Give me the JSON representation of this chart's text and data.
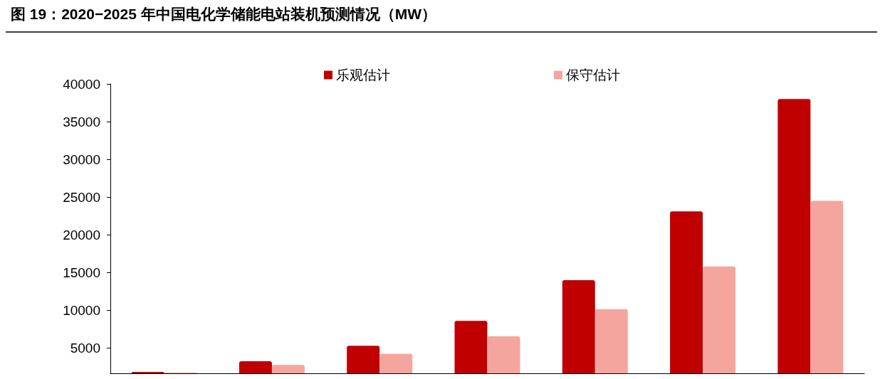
{
  "chart_data": {
    "type": "bar",
    "title": "图 19：2020−2025 年中国电化学储能电站装机预测情况（MW）",
    "categories": [
      null,
      null,
      null,
      null,
      null,
      null,
      null
    ],
    "series": [
      {
        "name": "乐观估计",
        "color": "#c00000",
        "values": [
          1850,
          3250,
          5300,
          8600,
          14000,
          23100,
          38000
        ]
      },
      {
        "name": "保守估计",
        "color": "#f4a69e",
        "values": [
          1750,
          2750,
          4250,
          6550,
          10150,
          15800,
          24500
        ]
      }
    ],
    "ylim": [
      1650,
      40000
    ],
    "yticks": [
      5000,
      10000,
      15000,
      20000,
      25000,
      30000,
      35000,
      40000
    ],
    "grid": false,
    "legend": "top"
  }
}
